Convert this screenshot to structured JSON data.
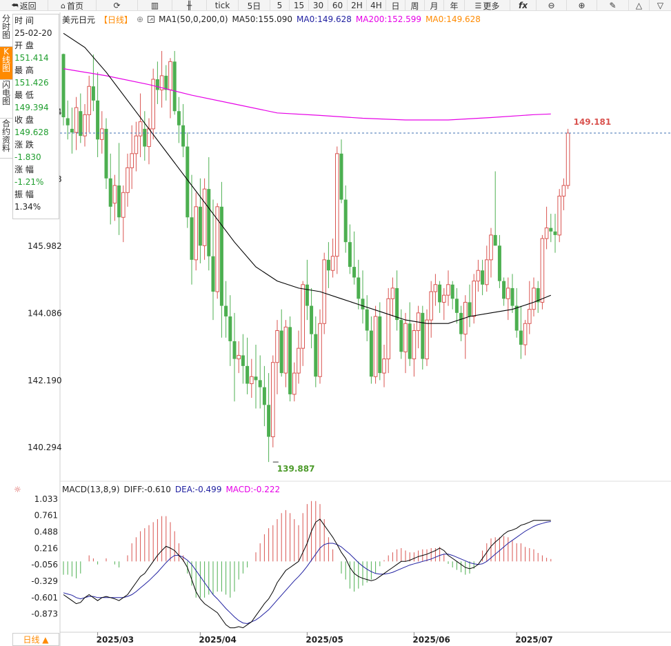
{
  "toolbar": {
    "back": "返回",
    "home": "首页",
    "tick": "tick",
    "periods": [
      "5日",
      "5",
      "15",
      "30",
      "60",
      "2H",
      "4H",
      "日",
      "周",
      "月",
      "年"
    ],
    "more": "更多",
    "fx": "fx"
  },
  "sidebar": {
    "tabs": [
      "分时图",
      "K线图",
      "闪电图",
      "合约资料"
    ]
  },
  "info_panel": {
    "time_label": "时 间",
    "time_value": "25-02-20",
    "open_label": "开 盘",
    "open_value": "151.414",
    "high_label": "最 高",
    "high_value": "151.426",
    "low_label": "最 低",
    "low_value": "149.394",
    "close_label": "收 盘",
    "close_value": "149.628",
    "change_label": "涨 跌",
    "change_value": "-1.830",
    "pct_label": "涨 幅",
    "pct_value": "-1.21%",
    "amp_label": "振 幅",
    "amp_value": "1.34%"
  },
  "legend_top": {
    "symbol": "美元日元",
    "period": "【日线】",
    "ma_spec": "MA1(50,0,200,0)",
    "ma50": "MA50:155.090",
    "ma0": "MA0:149.628",
    "ma200": "MA200:152.599",
    "ma0b": "MA0:149.628"
  },
  "legend_macd": {
    "spec": "MACD(13,8,9)",
    "diff": "DIFF:-0.610",
    "dea": "DEA:-0.499",
    "macd": "MACD:-0.222"
  },
  "bottom_tab": "日线 ▲",
  "colors": {
    "up": "#d9534f",
    "down": "#4caf50",
    "ma50": "#000000",
    "ma200": "#e600e6",
    "dea": "#1f1fa0",
    "accent": "#ff8a00"
  },
  "chart_data": [
    {
      "type": "candlestick",
      "title": "美元日元",
      "ylim": [
        139.5,
        152.2
      ],
      "y_ticks": [
        "149.774",
        "147.878",
        "145.982",
        "144.086",
        "142.190",
        "140.294"
      ],
      "y_tick_values": [
        149.774,
        147.878,
        145.982,
        144.086,
        142.19,
        140.294
      ],
      "x_ticks": [
        "2025/03",
        "2025/04",
        "2025/05",
        "2025/06",
        "2025/07"
      ],
      "x_tick_index": [
        8,
        32,
        57,
        82,
        106
      ],
      "last_price_label": "149.181",
      "last_price": 149.181,
      "low_label": "139.887",
      "low_value": 139.887,
      "low_index": 49,
      "candles": [
        [
          151.414,
          151.426,
          149.394,
          149.628
        ],
        [
          149.6,
          150.1,
          149.0,
          149.4
        ],
        [
          149.3,
          149.9,
          148.6,
          149.2
        ],
        [
          149.2,
          150.2,
          148.7,
          149.9
        ],
        [
          149.8,
          150.3,
          148.9,
          149.1
        ],
        [
          149.1,
          150.0,
          148.8,
          149.7
        ],
        [
          149.7,
          150.8,
          149.2,
          150.5
        ],
        [
          150.5,
          151.4,
          149.8,
          150.1
        ],
        [
          150.1,
          150.9,
          148.5,
          149.0
        ],
        [
          149.0,
          149.8,
          148.6,
          149.3
        ],
        [
          149.3,
          149.6,
          147.6,
          147.9
        ],
        [
          147.9,
          148.6,
          146.6,
          147.1
        ],
        [
          147.2,
          148.0,
          146.7,
          147.7
        ],
        [
          147.7,
          148.9,
          146.3,
          146.8
        ],
        [
          146.8,
          147.7,
          146.1,
          147.5
        ],
        [
          147.5,
          148.6,
          147.1,
          148.2
        ],
        [
          148.2,
          149.4,
          147.6,
          148.6
        ],
        [
          148.6,
          149.5,
          148.1,
          149.1
        ],
        [
          149.1,
          150.3,
          148.5,
          149.5
        ],
        [
          149.3,
          149.8,
          148.4,
          148.8
        ],
        [
          148.8,
          149.6,
          148.3,
          149.3
        ],
        [
          149.3,
          151.0,
          149.0,
          150.7
        ],
        [
          150.7,
          151.2,
          150.0,
          150.4
        ],
        [
          150.4,
          151.5,
          149.9,
          150.8
        ],
        [
          150.8,
          151.1,
          150.1,
          150.4
        ],
        [
          150.4,
          151.3,
          149.6,
          151.2
        ],
        [
          151.2,
          151.5,
          149.7,
          149.8
        ],
        [
          149.8,
          150.2,
          148.9,
          149.4
        ],
        [
          149.4,
          150.0,
          148.5,
          148.8
        ],
        [
          148.8,
          149.2,
          146.5,
          146.8
        ],
        [
          146.8,
          148.0,
          144.9,
          145.6
        ],
        [
          145.6,
          147.5,
          145.3,
          147.1
        ],
        [
          147.1,
          147.9,
          145.5,
          146.0
        ],
        [
          146.0,
          147.9,
          145.6,
          147.6
        ],
        [
          147.6,
          148.5,
          145.3,
          145.7
        ],
        [
          145.7,
          147.3,
          143.9,
          144.7
        ],
        [
          144.7,
          147.2,
          144.5,
          147.1
        ],
        [
          147.1,
          147.8,
          143.4,
          144.3
        ],
        [
          144.3,
          145.0,
          143.4,
          144.0
        ],
        [
          144.0,
          144.6,
          142.6,
          143.3
        ],
        [
          143.3,
          144.1,
          141.6,
          142.8
        ],
        [
          142.8,
          143.3,
          142.4,
          142.9
        ],
        [
          142.9,
          143.5,
          142.1,
          142.6
        ],
        [
          142.6,
          143.4,
          141.8,
          142.1
        ],
        [
          142.1,
          142.8,
          141.7,
          142.3
        ],
        [
          142.3,
          143.2,
          141.4,
          142.2
        ],
        [
          142.2,
          142.9,
          141.4,
          142.0
        ],
        [
          142.0,
          142.6,
          140.9,
          141.5
        ],
        [
          141.5,
          142.4,
          139.887,
          140.6
        ],
        [
          140.6,
          142.9,
          140.3,
          142.7
        ],
        [
          142.7,
          143.9,
          141.8,
          143.6
        ],
        [
          143.6,
          144.2,
          142.3,
          142.4
        ],
        [
          142.4,
          143.9,
          142.0,
          143.7
        ],
        [
          143.7,
          144.0,
          141.6,
          141.8
        ],
        [
          141.8,
          142.7,
          141.6,
          142.4
        ],
        [
          142.4,
          143.6,
          142.1,
          143.1
        ],
        [
          143.1,
          145.0,
          142.6,
          144.9
        ],
        [
          144.9,
          145.6,
          143.9,
          144.3
        ],
        [
          144.3,
          144.8,
          143.1,
          143.5
        ],
        [
          143.5,
          144.0,
          142.0,
          142.3
        ],
        [
          142.3,
          144.2,
          142.1,
          143.8
        ],
        [
          143.8,
          145.8,
          143.5,
          145.6
        ],
        [
          145.6,
          146.1,
          144.8,
          145.3
        ],
        [
          145.3,
          146.2,
          145.1,
          145.7
        ],
        [
          145.7,
          148.8,
          145.2,
          148.6
        ],
        [
          148.6,
          149.0,
          147.2,
          147.3
        ],
        [
          147.3,
          147.7,
          145.8,
          146.1
        ],
        [
          146.1,
          146.6,
          145.2,
          145.4
        ],
        [
          145.4,
          146.4,
          144.9,
          145.1
        ],
        [
          145.1,
          145.6,
          144.2,
          144.5
        ],
        [
          144.5,
          145.3,
          143.8,
          144.2
        ],
        [
          144.2,
          144.6,
          143.3,
          143.6
        ],
        [
          143.6,
          144.0,
          142.1,
          142.3
        ],
        [
          142.3,
          144.3,
          142.1,
          144.0
        ],
        [
          144.0,
          144.4,
          142.2,
          142.4
        ],
        [
          142.4,
          143.2,
          142.0,
          142.8
        ],
        [
          142.8,
          144.8,
          142.4,
          144.5
        ],
        [
          144.5,
          145.1,
          144.0,
          144.8
        ],
        [
          144.8,
          145.3,
          143.6,
          143.9
        ],
        [
          143.9,
          144.2,
          142.8,
          143.0
        ],
        [
          143.0,
          144.1,
          142.4,
          143.8
        ],
        [
          143.8,
          144.4,
          142.6,
          142.8
        ],
        [
          142.8,
          143.8,
          142.3,
          143.6
        ],
        [
          143.6,
          144.3,
          143.1,
          144.1
        ],
        [
          144.1,
          144.3,
          142.5,
          142.8
        ],
        [
          142.8,
          144.2,
          142.6,
          143.9
        ],
        [
          143.9,
          145.0,
          143.4,
          144.7
        ],
        [
          144.7,
          145.2,
          144.3,
          144.9
        ],
        [
          144.9,
          145.0,
          144.1,
          144.4
        ],
        [
          144.4,
          144.8,
          143.9,
          144.6
        ],
        [
          144.6,
          145.3,
          144.3,
          144.9
        ],
        [
          144.9,
          145.0,
          144.2,
          144.5
        ],
        [
          144.5,
          144.8,
          143.8,
          144.1
        ],
        [
          144.1,
          144.3,
          143.3,
          143.5
        ],
        [
          143.5,
          144.6,
          142.8,
          144.4
        ],
        [
          144.4,
          144.9,
          143.7,
          144.0
        ],
        [
          144.0,
          145.2,
          143.8,
          145.0
        ],
        [
          145.0,
          145.6,
          144.7,
          145.3
        ],
        [
          145.3,
          145.6,
          144.6,
          144.9
        ],
        [
          144.9,
          146.0,
          144.7,
          145.6
        ],
        [
          145.6,
          146.5,
          145.1,
          146.3
        ],
        [
          146.3,
          148.1,
          146.0,
          146.0
        ],
        [
          146.0,
          146.3,
          144.8,
          145.0
        ],
        [
          145.0,
          145.1,
          144.3,
          144.5
        ],
        [
          144.5,
          145.1,
          143.9,
          144.8
        ],
        [
          144.8,
          145.2,
          144.1,
          144.3
        ],
        [
          144.3,
          144.8,
          143.4,
          143.6
        ],
        [
          143.6,
          144.3,
          142.8,
          143.2
        ],
        [
          143.2,
          143.9,
          142.9,
          143.8
        ],
        [
          143.8,
          145.0,
          143.5,
          144.2
        ],
        [
          144.2,
          145.1,
          144.0,
          144.8
        ],
        [
          144.8,
          145.0,
          144.1,
          144.4
        ],
        [
          144.4,
          146.3,
          144.2,
          146.2
        ],
        [
          146.2,
          147.1,
          145.9,
          146.5
        ],
        [
          146.5,
          146.9,
          146.1,
          146.4
        ],
        [
          146.4,
          146.9,
          145.8,
          146.3
        ],
        [
          146.3,
          147.6,
          146.1,
          147.4
        ],
        [
          147.4,
          147.9,
          147.0,
          147.7
        ],
        [
          147.7,
          149.3,
          147.6,
          149.181
        ]
      ],
      "ma50": [
        [
          0,
          152.0
        ],
        [
          5,
          151.6
        ],
        [
          10,
          150.9
        ],
        [
          15,
          150.1
        ],
        [
          20,
          149.3
        ],
        [
          25,
          148.5
        ],
        [
          30,
          147.7
        ],
        [
          35,
          146.9
        ],
        [
          40,
          146.1
        ],
        [
          45,
          145.4
        ],
        [
          50,
          145.0
        ],
        [
          55,
          144.8
        ],
        [
          60,
          144.7
        ],
        [
          65,
          144.5
        ],
        [
          70,
          144.3
        ],
        [
          75,
          144.1
        ],
        [
          80,
          143.9
        ],
        [
          85,
          143.8
        ],
        [
          90,
          143.8
        ],
        [
          95,
          144.0
        ],
        [
          100,
          144.1
        ],
        [
          105,
          144.2
        ],
        [
          110,
          144.4
        ],
        [
          114,
          144.6
        ]
      ],
      "ma200": [
        [
          0,
          151.0
        ],
        [
          10,
          150.8
        ],
        [
          20,
          150.55
        ],
        [
          30,
          150.25
        ],
        [
          40,
          150.0
        ],
        [
          50,
          149.75
        ],
        [
          60,
          149.68
        ],
        [
          70,
          149.6
        ],
        [
          80,
          149.55
        ],
        [
          90,
          149.55
        ],
        [
          100,
          149.62
        ],
        [
          110,
          149.7
        ],
        [
          114,
          149.72
        ]
      ]
    },
    {
      "type": "macd",
      "ylim": [
        -1.15,
        1.1
      ],
      "y_ticks": [
        "1.033",
        "0.761",
        "0.488",
        "0.216",
        "-0.056",
        "-0.329",
        "-0.601",
        "-0.873"
      ],
      "y_tick_values": [
        1.033,
        0.761,
        0.488,
        0.216,
        -0.056,
        -0.329,
        -0.601,
        -0.873
      ],
      "diff_name": "DIFF",
      "dea_name": "DEA",
      "macd_name": "MACD",
      "diff": [
        -0.55,
        -0.6,
        -0.65,
        -0.7,
        -0.68,
        -0.6,
        -0.55,
        -0.6,
        -0.65,
        -0.6,
        -0.58,
        -0.6,
        -0.62,
        -0.65,
        -0.6,
        -0.55,
        -0.45,
        -0.35,
        -0.25,
        -0.2,
        -0.1,
        0.0,
        0.1,
        0.18,
        0.25,
        0.22,
        0.18,
        0.1,
        0.02,
        -0.1,
        -0.3,
        -0.5,
        -0.62,
        -0.7,
        -0.75,
        -0.8,
        -0.85,
        -0.95,
        -1.05,
        -1.1,
        -1.1,
        -1.08,
        -1.1,
        -1.05,
        -1.0,
        -0.9,
        -0.8,
        -0.7,
        -0.62,
        -0.5,
        -0.35,
        -0.25,
        -0.15,
        -0.1,
        -0.05,
        0.0,
        0.15,
        0.3,
        0.5,
        0.65,
        0.7,
        0.6,
        0.5,
        0.4,
        0.28,
        0.15,
        0.05,
        -0.1,
        -0.2,
        -0.25,
        -0.28,
        -0.3,
        -0.32,
        -0.3,
        -0.25,
        -0.2,
        -0.15,
        -0.1,
        -0.05,
        0.0,
        0.0,
        0.02,
        0.05,
        0.08,
        0.1,
        0.12,
        0.15,
        0.18,
        0.22,
        0.18,
        0.1,
        0.05,
        0.0,
        -0.05,
        -0.1,
        -0.12,
        -0.1,
        -0.05,
        0.05,
        0.15,
        0.25,
        0.32,
        0.38,
        0.45,
        0.5,
        0.52,
        0.55,
        0.6,
        0.62,
        0.65,
        0.68,
        0.68,
        0.68,
        0.68,
        0.68
      ],
      "dea": [
        -0.52,
        -0.54,
        -0.56,
        -0.6,
        -0.62,
        -0.6,
        -0.58,
        -0.58,
        -0.6,
        -0.6,
        -0.6,
        -0.6,
        -0.6,
        -0.6,
        -0.6,
        -0.58,
        -0.55,
        -0.5,
        -0.44,
        -0.38,
        -0.32,
        -0.25,
        -0.18,
        -0.1,
        -0.02,
        0.05,
        0.1,
        0.1,
        0.07,
        0.02,
        -0.05,
        -0.15,
        -0.25,
        -0.35,
        -0.45,
        -0.55,
        -0.62,
        -0.7,
        -0.78,
        -0.85,
        -0.92,
        -0.98,
        -1.02,
        -1.03,
        -1.0,
        -0.97,
        -0.92,
        -0.86,
        -0.8,
        -0.72,
        -0.64,
        -0.56,
        -0.48,
        -0.4,
        -0.32,
        -0.25,
        -0.17,
        -0.08,
        0.02,
        0.12,
        0.22,
        0.28,
        0.3,
        0.3,
        0.28,
        0.24,
        0.18,
        0.12,
        0.05,
        -0.02,
        -0.08,
        -0.13,
        -0.17,
        -0.2,
        -0.21,
        -0.21,
        -0.2,
        -0.18,
        -0.15,
        -0.12,
        -0.09,
        -0.06,
        -0.04,
        -0.02,
        0.0,
        0.02,
        0.04,
        0.07,
        0.1,
        0.12,
        0.12,
        0.1,
        0.07,
        0.04,
        0.01,
        -0.02,
        -0.04,
        -0.05,
        -0.04,
        0.0,
        0.06,
        0.12,
        0.18,
        0.24,
        0.3,
        0.35,
        0.4,
        0.45,
        0.5,
        0.54,
        0.58,
        0.61,
        0.63,
        0.65,
        0.66
      ],
      "macd": [
        -0.22,
        -0.22,
        -0.25,
        -0.28,
        -0.2,
        0.0,
        0.1,
        0.05,
        -0.05,
        0.0,
        0.05,
        0.0,
        -0.05,
        -0.1,
        0.0,
        0.1,
        0.3,
        0.4,
        0.5,
        0.55,
        0.6,
        0.65,
        0.7,
        0.75,
        0.75,
        0.65,
        0.5,
        0.3,
        0.1,
        -0.2,
        -0.4,
        -0.6,
        -0.6,
        -0.6,
        -0.55,
        -0.55,
        -0.5,
        -0.5,
        -0.55,
        -0.6,
        -0.5,
        -0.3,
        -0.2,
        -0.1,
        0.0,
        0.15,
        0.3,
        0.45,
        0.55,
        0.6,
        0.7,
        0.8,
        0.85,
        0.8,
        0.7,
        0.6,
        0.8,
        0.95,
        1.0,
        1.0,
        0.95,
        0.7,
        0.4,
        0.2,
        0.0,
        -0.2,
        -0.3,
        -0.45,
        -0.5,
        -0.45,
        -0.4,
        -0.35,
        -0.3,
        -0.2,
        -0.08,
        0.02,
        0.1,
        0.15,
        0.2,
        0.22,
        0.18,
        0.15,
        0.15,
        0.18,
        0.2,
        0.2,
        0.22,
        0.22,
        0.24,
        0.12,
        -0.04,
        -0.1,
        -0.14,
        -0.18,
        -0.22,
        -0.2,
        -0.12,
        0.0,
        0.18,
        0.3,
        0.38,
        0.4,
        0.4,
        0.42,
        0.4,
        0.34,
        0.3,
        0.3,
        0.24,
        0.22,
        0.2,
        0.14,
        0.1,
        0.06,
        0.04
      ]
    }
  ]
}
